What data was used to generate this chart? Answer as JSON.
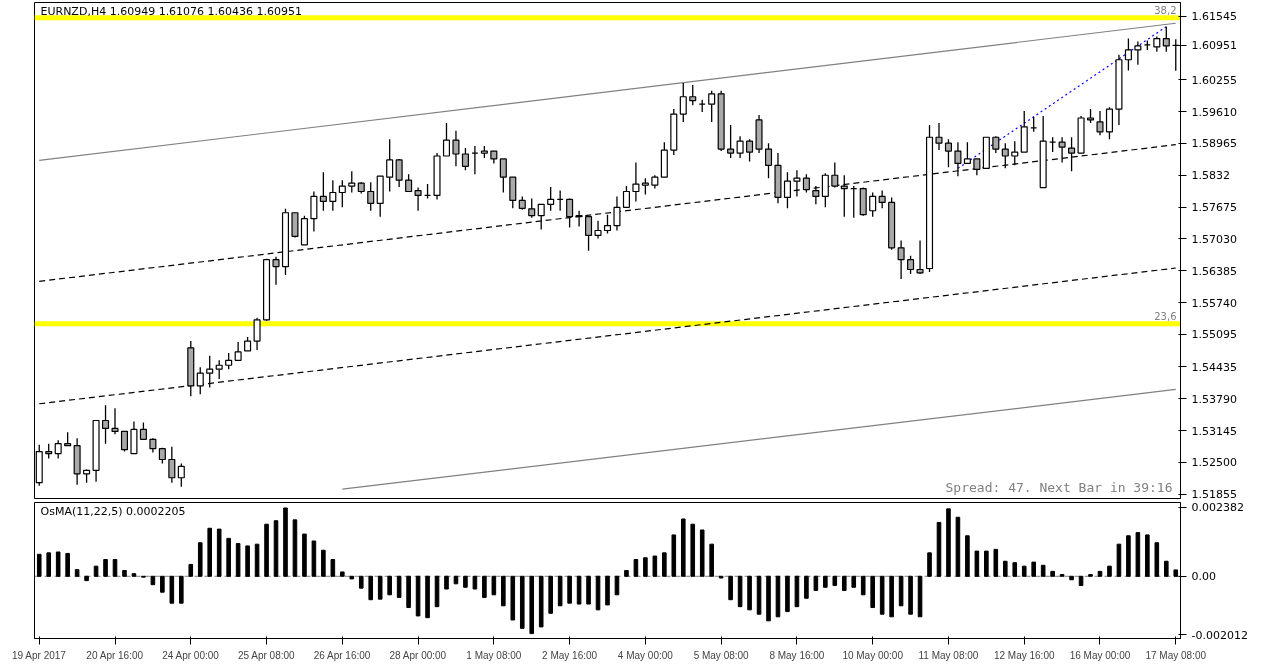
{
  "chart_data": [
    {
      "type": "candlestick",
      "title": "EURNZD,H4  1.60949 1.61076 1.60436 1.60951",
      "categories": [
        "19 Apr 2017",
        null,
        null,
        null,
        null,
        null,
        null,
        null,
        "20 Apr 16:00",
        null,
        null,
        null,
        null,
        null,
        null,
        null,
        "24 Apr 00:00",
        null,
        null,
        null,
        null,
        null,
        null,
        null,
        "25 Apr 08:00",
        null,
        null,
        null,
        null,
        null,
        null,
        null,
        "26 Apr 16:00",
        null,
        null,
        null,
        null,
        null,
        null,
        null,
        "28 Apr 00:00",
        null,
        null,
        null,
        null,
        null,
        null,
        null,
        "1 May 08:00",
        null,
        null,
        null,
        null,
        null,
        null,
        null,
        "2 May 16:00",
        null,
        null,
        null,
        null,
        null,
        null,
        null,
        "4 May 00:00",
        null,
        null,
        null,
        null,
        null,
        null,
        null,
        "5 May 08:00",
        null,
        null,
        null,
        null,
        null,
        null,
        null,
        "8 May 16:00",
        null,
        null,
        null,
        null,
        null,
        null,
        null,
        "10 May 00:00",
        null,
        null,
        null,
        null,
        null,
        null,
        null,
        "11 May 08:00",
        null,
        null,
        null,
        null,
        null,
        null,
        null,
        "12 May 16:00",
        null,
        null,
        null,
        null,
        null,
        null,
        null,
        "16 May 00:00",
        null,
        null,
        null,
        null,
        null,
        null,
        null,
        "17 May 08:00"
      ],
      "colors": [
        "#ffffff",
        "#a9a9a9",
        "#ffffff",
        "#a9a9a9",
        "#a9a9a9",
        "#ffffff",
        "#ffffff",
        "#a9a9a9",
        "#a9a9a9",
        "#a9a9a9",
        "#ffffff",
        "#a9a9a9",
        "#a9a9a9",
        "#a9a9a9",
        "#a9a9a9",
        "#ffffff",
        "#a9a9a9",
        "#ffffff",
        "#ffffff",
        "#ffffff",
        "#ffffff",
        "#ffffff",
        "#ffffff",
        "#ffffff",
        "#ffffff",
        "#a9a9a9",
        "#ffffff",
        "#a9a9a9",
        "#ffffff",
        "#ffffff",
        "#a9a9a9",
        "#ffffff",
        "#ffffff",
        "#ffffff",
        "#a9a9a9",
        "#a9a9a9",
        "#ffffff",
        "#ffffff",
        "#a9a9a9",
        "#a9a9a9",
        "#a9a9a9",
        "#000000",
        "#ffffff",
        "#ffffff",
        "#a9a9a9",
        "#a9a9a9",
        "#000000",
        "#ffffff",
        "#a9a9a9",
        "#a9a9a9",
        "#a9a9a9",
        "#a9a9a9",
        "#a9a9a9",
        "#ffffff",
        "#ffffff",
        "#000000",
        "#a9a9a9",
        "#a9a9a9",
        "#a9a9a9",
        "#ffffff",
        "#ffffff",
        "#ffffff",
        "#ffffff",
        "#ffffff",
        "#ffffff",
        "#ffffff",
        "#ffffff",
        "#ffffff",
        "#ffffff",
        "#a9a9a9",
        "#000000",
        "#ffffff",
        "#a9a9a9",
        "#a9a9a9",
        "#ffffff",
        "#a9a9a9",
        "#a9a9a9",
        "#a9a9a9",
        "#a9a9a9",
        "#ffffff",
        "#ffffff",
        "#a9a9a9",
        "#a9a9a9",
        "#ffffff",
        "#a9a9a9",
        "#a9a9a9",
        "#000000",
        "#a9a9a9",
        "#ffffff",
        "#a9a9a9",
        "#a9a9a9",
        "#a9a9a9",
        "#a9a9a9",
        "#a9a9a9",
        "#ffffff",
        "#a9a9a9",
        "#a9a9a9",
        "#a9a9a9",
        "#ffffff",
        "#a9a9a9",
        "#ffffff",
        "#a9a9a9",
        "#a9a9a9",
        "#ffffff",
        "#ffffff",
        "#000000",
        "#ffffff",
        "#000000",
        "#a9a9a9",
        "#a9a9a9",
        "#ffffff",
        "#a9a9a9",
        "#a9a9a9",
        "#ffffff",
        "#ffffff",
        "#ffffff",
        "#ffffff",
        "#000000",
        "#ffffff",
        "#a9a9a9",
        "#ffffff"
      ],
      "ohlc": [
        [
          1.5209,
          1.5286,
          1.5203,
          1.5272
        ],
        [
          1.5272,
          1.5288,
          1.5258,
          1.5268
        ],
        [
          1.5268,
          1.5295,
          1.5258,
          1.5288
        ],
        [
          1.5288,
          1.5311,
          1.5284,
          1.5284
        ],
        [
          1.5284,
          1.5299,
          1.5205,
          1.5227
        ],
        [
          1.5227,
          1.5236,
          1.5209,
          1.5234
        ],
        [
          1.5234,
          1.5335,
          1.5211,
          1.5335
        ],
        [
          1.5335,
          1.5366,
          1.5288,
          1.5319
        ],
        [
          1.5319,
          1.536,
          1.5307,
          1.5313
        ],
        [
          1.5313,
          1.5313,
          1.5272,
          1.5276
        ],
        [
          1.5268,
          1.5333,
          1.5268,
          1.5317
        ],
        [
          1.5317,
          1.5331,
          1.5297,
          1.5297
        ],
        [
          1.5297,
          1.5299,
          1.527,
          1.5278
        ],
        [
          1.5278,
          1.528,
          1.5248,
          1.5256
        ],
        [
          1.5256,
          1.5282,
          1.5209,
          1.5219
        ],
        [
          1.5219,
          1.5248,
          1.5201,
          1.5242
        ],
        [
          1.5482,
          1.5496,
          1.5384,
          1.5405
        ],
        [
          1.5405,
          1.5443,
          1.5388,
          1.5431
        ],
        [
          1.5431,
          1.5466,
          1.5402,
          1.5439
        ],
        [
          1.5439,
          1.5457,
          1.5419,
          1.5447
        ],
        [
          1.5447,
          1.5472,
          1.5439,
          1.5457
        ],
        [
          1.5457,
          1.5494,
          1.5457,
          1.5474
        ],
        [
          1.5476,
          1.5504,
          1.5476,
          1.5496
        ],
        [
          1.5496,
          1.5543,
          1.5478,
          1.5539
        ],
        [
          1.5539,
          1.5663,
          1.5537,
          1.5661
        ],
        [
          1.5661,
          1.5667,
          1.561,
          1.5647
        ],
        [
          1.5647,
          1.5764,
          1.563,
          1.5756
        ],
        [
          1.5756,
          1.5756,
          1.5706,
          1.5708
        ],
        [
          1.5691,
          1.575,
          1.5691,
          1.5744
        ],
        [
          1.5744,
          1.5799,
          1.5718,
          1.5789
        ],
        [
          1.5789,
          1.5838,
          1.576,
          1.5779
        ],
        [
          1.5779,
          1.5822,
          1.576,
          1.5797
        ],
        [
          1.5797,
          1.5822,
          1.5767,
          1.581
        ],
        [
          1.581,
          1.584,
          1.5797,
          1.5816
        ],
        [
          1.5816,
          1.5818,
          1.5795,
          1.5799
        ],
        [
          1.5799,
          1.5818,
          1.576,
          1.5775
        ],
        [
          1.5775,
          1.583,
          1.5748,
          1.583
        ],
        [
          1.5828,
          1.5905,
          1.5799,
          1.5863
        ],
        [
          1.5863,
          1.5865,
          1.5808,
          1.5822
        ],
        [
          1.5822,
          1.5834,
          1.5799,
          1.5799
        ],
        [
          1.5801,
          1.5807,
          1.576,
          1.5791
        ],
        [
          1.5791,
          1.5814,
          1.5785,
          1.5791
        ],
        [
          1.5791,
          1.5877,
          1.5783,
          1.5871
        ],
        [
          1.5871,
          1.5938,
          1.5871,
          1.5903
        ],
        [
          1.5903,
          1.5922,
          1.585,
          1.5875
        ],
        [
          1.5875,
          1.5887,
          1.5842,
          1.585
        ],
        [
          1.5877,
          1.5891,
          1.5834,
          1.5877
        ],
        [
          1.5877,
          1.5891,
          1.5867,
          1.5881
        ],
        [
          1.5881,
          1.5881,
          1.5856,
          1.5865
        ],
        [
          1.5865,
          1.5865,
          1.5797,
          1.5828
        ],
        [
          1.5828,
          1.5828,
          1.5765,
          1.5781
        ],
        [
          1.5781,
          1.5789,
          1.5762,
          1.5765
        ],
        [
          1.5764,
          1.5785,
          1.5746,
          1.575
        ],
        [
          1.575,
          1.5773,
          1.5722,
          1.5773
        ],
        [
          1.5773,
          1.5808,
          1.576,
          1.5783
        ],
        [
          1.5783,
          1.5801,
          1.576,
          1.5783
        ],
        [
          1.5783,
          1.5785,
          1.5726,
          1.5748
        ],
        [
          1.575,
          1.576,
          1.5728,
          1.5748
        ],
        [
          1.5748,
          1.5748,
          1.5679,
          1.571
        ],
        [
          1.571,
          1.574,
          1.5704,
          1.572
        ],
        [
          1.572,
          1.5752,
          1.5714,
          1.573
        ],
        [
          1.573,
          1.5789,
          1.572,
          1.5767
        ],
        [
          1.5767,
          1.581,
          1.5767,
          1.5799
        ],
        [
          1.5799,
          1.5858,
          1.5779,
          1.5814
        ],
        [
          1.5812,
          1.5826,
          1.5793,
          1.5816
        ],
        [
          1.5812,
          1.5832,
          1.5805,
          1.5828
        ],
        [
          1.5828,
          1.5899,
          1.5828,
          1.5883
        ],
        [
          1.5883,
          1.5966,
          1.5873,
          1.5956
        ],
        [
          1.5956,
          1.6019,
          1.594,
          1.5991
        ],
        [
          1.5991,
          1.6015,
          1.5974,
          1.5983
        ],
        [
          1.5976,
          1.5985,
          1.596,
          1.5976
        ],
        [
          1.5976,
          1.6003,
          1.594,
          1.5997
        ],
        [
          1.5997,
          1.6003,
          1.5881,
          1.5885
        ],
        [
          1.5885,
          1.5934,
          1.5867,
          1.5877
        ],
        [
          1.5877,
          1.5911,
          1.5867,
          1.5901
        ],
        [
          1.5901,
          1.5905,
          1.586,
          1.5879
        ],
        [
          1.5944,
          1.5954,
          1.5877,
          1.5885
        ],
        [
          1.5885,
          1.5897,
          1.5826,
          1.5852
        ],
        [
          1.5852,
          1.5877,
          1.5775,
          1.5787
        ],
        [
          1.5787,
          1.5838,
          1.5765,
          1.582
        ],
        [
          1.582,
          1.5842,
          1.5789,
          1.5826
        ],
        [
          1.5826,
          1.5834,
          1.5797,
          1.5803
        ],
        [
          1.5801,
          1.581,
          1.5773,
          1.5789
        ],
        [
          1.5789,
          1.5836,
          1.5767,
          1.5832
        ],
        [
          1.5832,
          1.5858,
          1.5807,
          1.581
        ],
        [
          1.581,
          1.5832,
          1.5748,
          1.5805
        ],
        [
          1.5805,
          1.581,
          1.5746,
          1.5805
        ],
        [
          1.5805,
          1.5807,
          1.575,
          1.5752
        ],
        [
          1.576,
          1.5797,
          1.5748,
          1.5789
        ],
        [
          1.5789,
          1.5801,
          1.5765,
          1.5777
        ],
        [
          1.5777,
          1.5787,
          1.5681,
          1.5685
        ],
        [
          1.5685,
          1.57,
          1.5622,
          1.5661
        ],
        [
          1.5661,
          1.5669,
          1.5632,
          1.5641
        ],
        [
          1.5641,
          1.57,
          1.5632,
          1.5634
        ],
        [
          1.5643,
          1.5934,
          1.5636,
          1.5909
        ],
        [
          1.5909,
          1.5938,
          1.5883,
          1.5897
        ],
        [
          1.5897,
          1.5905,
          1.5848,
          1.5881
        ],
        [
          1.5881,
          1.5899,
          1.583,
          1.5856
        ],
        [
          1.5856,
          1.5899,
          1.5856,
          1.5865
        ],
        [
          1.5865,
          1.5865,
          1.5832,
          1.5844
        ],
        [
          1.5846,
          1.5909,
          1.5846,
          1.5909
        ],
        [
          1.5909,
          1.5911,
          1.5877,
          1.5885
        ],
        [
          1.5885,
          1.5897,
          1.5846,
          1.5871
        ],
        [
          1.5871,
          1.5901,
          1.5852,
          1.5879
        ],
        [
          1.5879,
          1.5962,
          1.5879,
          1.593
        ],
        [
          1.5928,
          1.595,
          1.592,
          1.5928
        ],
        [
          1.5807,
          1.5952,
          1.5807,
          1.5901
        ],
        [
          1.5899,
          1.5909,
          1.5879,
          1.5899
        ],
        [
          1.5899,
          1.5909,
          1.5858,
          1.5889
        ],
        [
          1.5887,
          1.5909,
          1.584,
          1.5877
        ],
        [
          1.5877,
          1.5952,
          1.5877,
          1.5948
        ],
        [
          1.5948,
          1.5966,
          1.5938,
          1.5944
        ],
        [
          1.594,
          1.5962,
          1.5913,
          1.592
        ],
        [
          1.592,
          1.597,
          1.5905,
          1.5966
        ],
        [
          1.5966,
          1.6076,
          1.5934,
          1.6066
        ],
        [
          1.6066,
          1.6109,
          1.6044,
          1.6086
        ],
        [
          1.6086,
          1.6103,
          1.6056,
          1.6094
        ],
        [
          1.6096,
          1.6105,
          1.6086,
          1.6096
        ],
        [
          1.6092,
          1.6113,
          1.6082,
          1.6109
        ],
        [
          1.6109,
          1.6133,
          1.6082,
          1.6094
        ],
        [
          1.60949,
          1.61076,
          1.60436,
          1.60951
        ]
      ],
      "series": [
        {
          "type": "line",
          "x": [
            "19 Apr 2017",
            "17 May 08:00"
          ],
          "values": [
            1.5862,
            1.614
          ],
          "color": "#808080",
          "line_style": "solid"
        },
        {
          "type": "line",
          "x": [
            "19 Apr 2017",
            "17 May 08:00"
          ],
          "values": [
            1.5617,
            1.5894
          ],
          "color": "#000000",
          "line_style": "dashed"
        },
        {
          "type": "line",
          "x": [
            "19 Apr 2017",
            "17 May 08:00"
          ],
          "values": [
            1.5369,
            1.5644
          ],
          "color": "#000000",
          "line_style": "dashed"
        },
        {
          "type": "line",
          "x": [
            "26 Apr 16:00",
            "17 May 08:00"
          ],
          "values": [
            1.5196,
            1.5398
          ],
          "color": "#808080",
          "line_style": "solid"
        },
        {
          "type": "line",
          "color": "#0000ff",
          "line_style": "dotted",
          "values": [
            null,
            null,
            null,
            null,
            null,
            null,
            null,
            null,
            null,
            null,
            null,
            null,
            null,
            null,
            null,
            null,
            null,
            null,
            null,
            null,
            null,
            null,
            null,
            null,
            null,
            null,
            null,
            null,
            null,
            null,
            null,
            null,
            null,
            null,
            null,
            null,
            null,
            null,
            null,
            null,
            null,
            null,
            null,
            null,
            null,
            null,
            null,
            null,
            null,
            null,
            null,
            null,
            null,
            null,
            null,
            null,
            null,
            null,
            null,
            null,
            null,
            null,
            null,
            null,
            null,
            null,
            null,
            null,
            null,
            null,
            null,
            null,
            null,
            null,
            null,
            null,
            null,
            null,
            null,
            null,
            null,
            null,
            null,
            null,
            null,
            null,
            null,
            null,
            null,
            null,
            null,
            null,
            null,
            null,
            null,
            null,
            null,
            1.5846,
            null,
            null,
            null,
            null,
            null,
            null,
            null,
            null,
            null,
            null,
            null,
            null,
            null,
            null,
            null,
            null,
            null,
            null,
            null,
            null,
            null,
            1.6133,
            null
          ]
        }
      ],
      "ref_lines": [
        {
          "axis": "y",
          "value": 1.6151,
          "color": "#ffff00",
          "line_style": "solid"
        },
        {
          "axis": "y",
          "value": 1.5531,
          "color": "#ffff00",
          "line_style": "solid"
        }
      ],
      "annotations": [
        {
          "text": "38,2",
          "y": 1.6151
        },
        {
          "text": "23,6",
          "y": 1.5531
        },
        "Spread: 47. Next Bar in 39:16"
      ],
      "ylim": [
        1.5177,
        1.6182
      ],
      "yticks": [
        1.61545,
        {
          "value": 1.60951,
          "label": "1.60951"
        },
        1.60255,
        {
          "value": 1.5961,
          "label": "1.59610"
        },
        1.58965,
        1.5832,
        1.57675,
        {
          "value": 1.5703,
          "label": "1.57030"
        },
        1.56385,
        {
          "value": 1.5574,
          "label": "1.55740"
        },
        1.55095,
        1.54435,
        {
          "value": 1.5379,
          "label": "1.53790"
        },
        1.53145,
        {
          "value": 1.525,
          "label": "1.52500"
        },
        1.51855
      ],
      "tick_labels": "y",
      "grid": false
    },
    {
      "type": "bar",
      "title": "OsMA(11,22,5) 0.0002205",
      "color": "#000000",
      "categories": [
        "19 Apr 2017",
        null,
        null,
        null,
        null,
        null,
        null,
        null,
        "20 Apr 16:00",
        null,
        null,
        null,
        null,
        null,
        null,
        null,
        "24 Apr 00:00",
        null,
        null,
        null,
        null,
        null,
        null,
        null,
        "25 Apr 08:00",
        null,
        null,
        null,
        null,
        null,
        null,
        null,
        "26 Apr 16:00",
        null,
        null,
        null,
        null,
        null,
        null,
        null,
        "28 Apr 00:00",
        null,
        null,
        null,
        null,
        null,
        null,
        null,
        "1 May 08:00",
        null,
        null,
        null,
        null,
        null,
        null,
        null,
        "2 May 16:00",
        null,
        null,
        null,
        null,
        null,
        null,
        null,
        "4 May 00:00",
        null,
        null,
        null,
        null,
        null,
        null,
        null,
        "5 May 08:00",
        null,
        null,
        null,
        null,
        null,
        null,
        null,
        "8 May 16:00",
        null,
        null,
        null,
        null,
        null,
        null,
        null,
        "10 May 00:00",
        null,
        null,
        null,
        null,
        null,
        null,
        null,
        "11 May 08:00",
        null,
        null,
        null,
        null,
        null,
        null,
        null,
        "12 May 16:00",
        null,
        null,
        null,
        null,
        null,
        null,
        null,
        "16 May 00:00",
        null,
        null,
        null,
        null,
        null,
        null,
        null,
        "17 May 08:00"
      ],
      "values": [
        0.00076,
        0.00081,
        0.00084,
        0.00079,
        0.00023,
        -0.00015,
        0.00035,
        0.00058,
        0.00058,
        0.0002,
        9e-05,
        -3e-05,
        -0.00029,
        -0.00055,
        -0.00093,
        -0.00093,
        0.00041,
        0.00116,
        0.00166,
        0.00163,
        0.00131,
        0.00113,
        0.00105,
        0.00111,
        0.0018,
        0.00192,
        0.00236,
        0.00195,
        0.00146,
        0.00122,
        0.0009,
        0.00058,
        0.00015,
        -9e-05,
        -0.00041,
        -0.00081,
        -0.00079,
        -0.00064,
        -0.00073,
        -0.00108,
        -0.00137,
        -0.00143,
        -0.00105,
        -0.00044,
        -0.00026,
        -0.00038,
        -0.00044,
        -0.00073,
        -0.00064,
        -0.00102,
        -0.00151,
        -0.0018,
        -0.00198,
        -0.00175,
        -0.00128,
        -0.00102,
        -0.00093,
        -0.00096,
        -0.00096,
        -0.00116,
        -0.00099,
        -0.00064,
        0.0002,
        0.00058,
        0.00064,
        0.0007,
        0.00081,
        0.00143,
        0.00198,
        0.0018,
        0.0016,
        0.00111,
        -6e-05,
        -0.00081,
        -0.00105,
        -0.00116,
        -0.00131,
        -0.00154,
        -0.0014,
        -0.00122,
        -0.00105,
        -0.00076,
        -0.00049,
        -0.00038,
        -0.00032,
        -0.00049,
        -0.00038,
        -0.00064,
        -0.00108,
        -0.00131,
        -0.0014,
        -0.00102,
        -0.00131,
        -0.0014,
        0.00081,
        0.00186,
        0.00233,
        0.00204,
        0.0014,
        0.00087,
        0.00087,
        0.00093,
        0.00052,
        0.00047,
        0.00035,
        0.00049,
        0.00038,
        0.00017,
        6e-05,
        -0.00012,
        -0.00032,
        6e-05,
        0.00017,
        0.00035,
        0.00111,
        0.0014,
        0.00151,
        0.00143,
        0.00116,
        0.00052,
        0.00022
      ],
      "ref_lines": [
        {
          "axis": "y",
          "value": 0,
          "color": "#808080",
          "line_style": "dashed"
        }
      ],
      "ylim": [
        -0.00215,
        0.00255
      ],
      "yticks": [
        {
          "value": 0.002382,
          "label": "0.002382"
        },
        {
          "value": 0,
          "label": "0.00"
        },
        {
          "value": -0.002012,
          "label": "-0.002012"
        }
      ],
      "grid": false
    }
  ]
}
